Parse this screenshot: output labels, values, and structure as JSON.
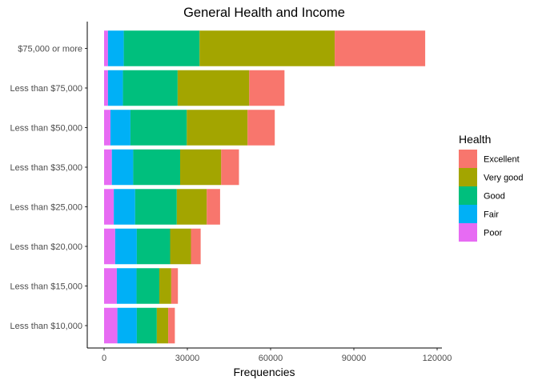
{
  "chart_data": {
    "type": "bar",
    "orientation": "horizontal",
    "stacked": true,
    "title": "General Health and Income",
    "xlabel": "Frequencies",
    "ylabel": "",
    "xlim": [
      0,
      120000
    ],
    "x_ticks": [
      0,
      30000,
      60000,
      90000,
      120000
    ],
    "grid": false,
    "categories": [
      "Less than $10,000",
      "Less than $15,000",
      "Less than $20,000",
      "Less than $25,000",
      "Less than $35,000",
      "Less than $50,000",
      "Less than $75,000",
      "$75,000 or more"
    ],
    "legend": {
      "title": "Health",
      "position": "right",
      "entries": [
        "Excellent",
        "Very good",
        "Good",
        "Fair",
        "Poor"
      ]
    },
    "series": [
      {
        "name": "Poor",
        "color": "#E76BF3",
        "values": [
          4800,
          4600,
          4000,
          3500,
          2800,
          2300,
          1400,
          1400
        ]
      },
      {
        "name": "Fair",
        "color": "#00B0F6",
        "values": [
          7000,
          7100,
          7800,
          7700,
          7700,
          7200,
          5400,
          5700
        ]
      },
      {
        "name": "Good",
        "color": "#00BF7D",
        "values": [
          7200,
          8200,
          12000,
          15000,
          16900,
          20300,
          19700,
          27300
        ]
      },
      {
        "name": "Very good",
        "color": "#A3A500",
        "values": [
          4100,
          4300,
          7500,
          10800,
          14800,
          21900,
          25800,
          48700
        ]
      },
      {
        "name": "Excellent",
        "color": "#F8766D",
        "values": [
          2400,
          2400,
          3500,
          4800,
          6400,
          9800,
          12700,
          32600
        ]
      }
    ]
  }
}
